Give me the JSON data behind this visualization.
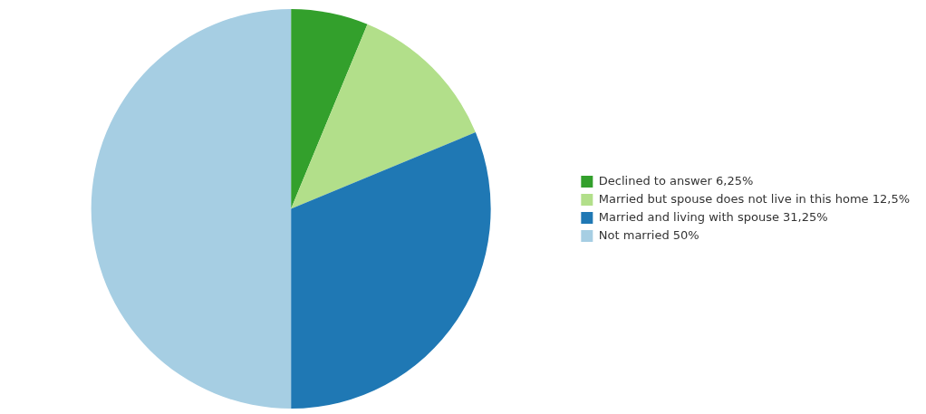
{
  "chart_data": {
    "type": "pie",
    "categories": [
      "Declined to answer",
      "Married but spouse does not live in this home",
      "Married and living with spouse",
      "Not married"
    ],
    "values": [
      6.25,
      12.5,
      31.25,
      50
    ],
    "value_labels": [
      "6,25%",
      "12,5%",
      "31,25%",
      "50%"
    ],
    "colors": [
      "#33a02c",
      "#b2df8a",
      "#1f78b4",
      "#a6cee3"
    ],
    "legend": "right"
  }
}
